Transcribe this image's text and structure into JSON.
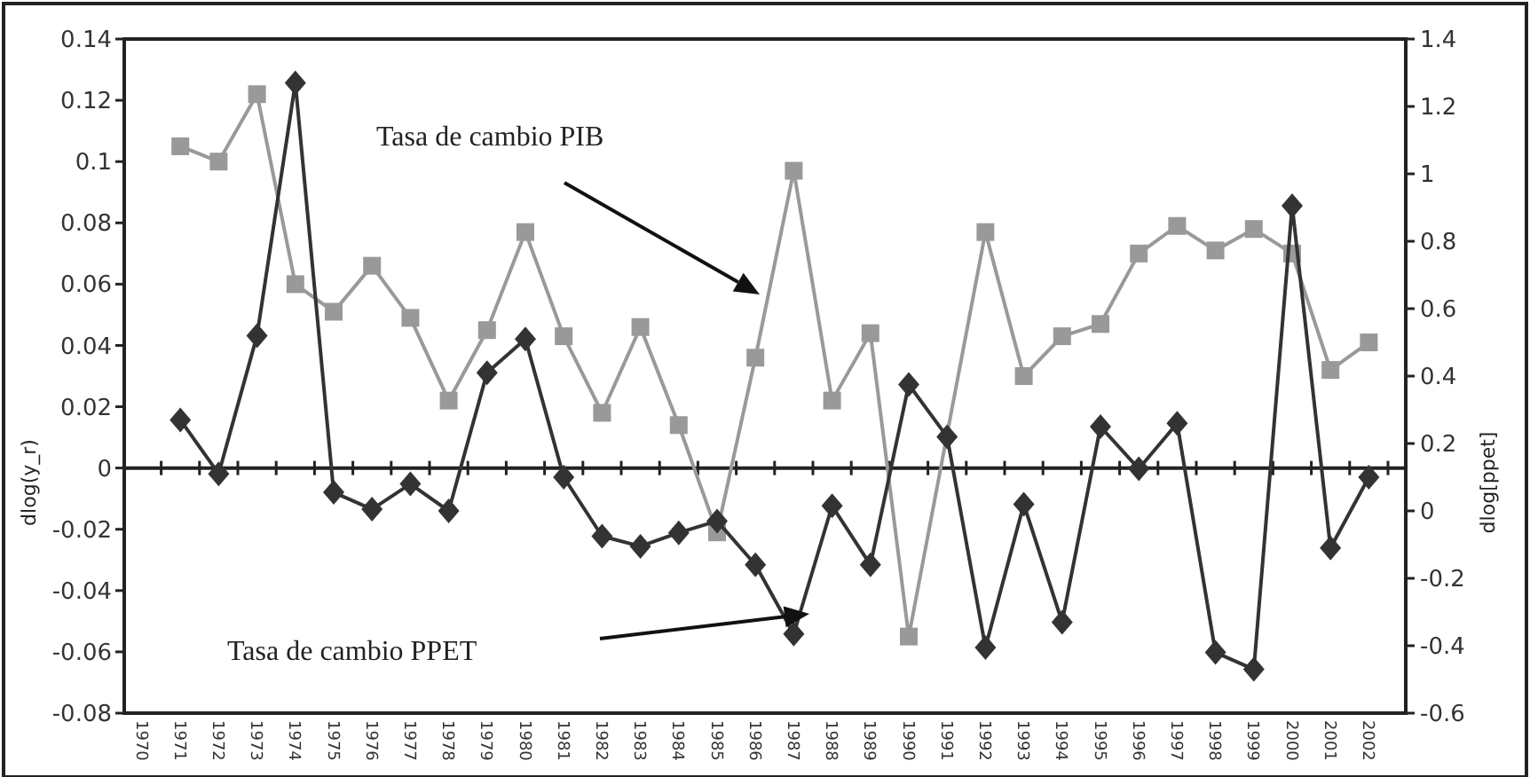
{
  "chart_data": {
    "type": "line",
    "ylabel": "dlog(y_r)",
    "y2label": "dlog[ppet]",
    "categories": [
      "1970",
      "1971",
      "1972",
      "1973",
      "1974",
      "1975",
      "1976",
      "1977",
      "1978",
      "1979",
      "1980",
      "1981",
      "1982",
      "1983",
      "1984",
      "1985",
      "1986",
      "1987",
      "1988",
      "1989",
      "1990",
      "1991",
      "1992",
      "1993",
      "1994",
      "1995",
      "1996",
      "1997",
      "1998",
      "1999",
      "2000",
      "2001",
      "2002"
    ],
    "series": [
      {
        "color": "#999999",
        "marker": "square",
        "values": [
          null,
          0.105,
          0.1,
          0.122,
          0.06,
          0.051,
          0.066,
          0.049,
          0.022,
          0.045,
          0.077,
          0.043,
          0.018,
          0.046,
          0.014,
          -0.021,
          0.036,
          0.097,
          0.022,
          0.044,
          -0.055,
          null,
          0.077,
          0.03,
          0.043,
          0.047,
          0.07,
          0.079,
          0.071,
          0.078,
          0.07,
          0.032,
          0.041
        ]
      },
      {
        "color": "#333333",
        "marker": "diamond",
        "axis": "y2",
        "values": [
          null,
          0.27,
          0.11,
          0.52,
          1.27,
          0.055,
          0.005,
          0.08,
          0.0,
          0.41,
          0.51,
          0.1,
          -0.075,
          -0.105,
          -0.065,
          -0.03,
          -0.16,
          -0.365,
          0.015,
          -0.16,
          0.375,
          0.22,
          -0.405,
          0.02,
          -0.33,
          0.25,
          0.125,
          0.26,
          -0.42,
          -0.47,
          0.905,
          -0.11,
          0.1
        ]
      }
    ],
    "ylim": [
      -0.08,
      0.14
    ],
    "yticks": [
      {
        "value": -0.08,
        "label": "-0.08"
      },
      {
        "value": -0.06,
        "label": "-0.06"
      },
      {
        "value": -0.04,
        "label": "-0.04"
      },
      {
        "value": -0.02,
        "label": "-0.02"
      },
      0,
      {
        "value": 0.02,
        "label": "0.02"
      },
      {
        "value": 0.04,
        "label": "0.04"
      },
      {
        "value": 0.06,
        "label": "0.06"
      },
      {
        "value": 0.08,
        "label": "0.08"
      },
      {
        "value": 0.1,
        "label": "0.1"
      },
      {
        "value": 0.12,
        "label": "0.12"
      },
      {
        "value": 0.14,
        "label": "0.14"
      }
    ],
    "y2lim": [
      -0.6,
      1.4
    ],
    "y2ticks": [
      -0.6,
      -0.4,
      -0.2,
      0,
      0.2,
      0.4,
      0.6,
      0.8,
      1,
      1.2,
      1.4
    ],
    "annotations": [
      "Tasa de cambio PIB",
      "Tasa de cambio PPET"
    ],
    "line_style": "solid"
  }
}
